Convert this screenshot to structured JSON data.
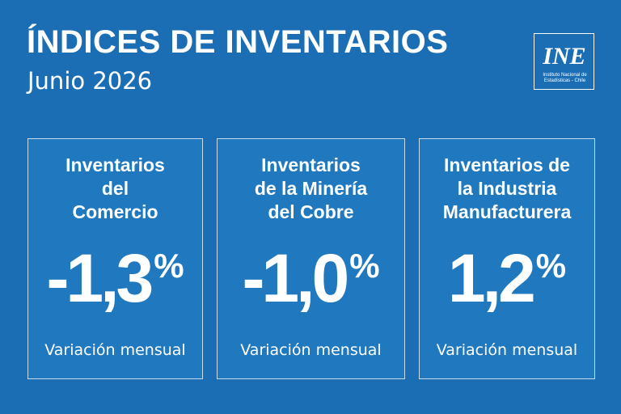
{
  "header": {
    "title": "ÍNDICES DE INVENTARIOS",
    "subtitle": "Junio 2026"
  },
  "logo": {
    "mark": "INE",
    "line1": "Instituto Nacional de",
    "line2": "Estadísticas - Chile"
  },
  "cards": [
    {
      "title_lines": [
        "Inventarios",
        "del",
        "Comercio"
      ],
      "value": "-1,3",
      "unit": "%",
      "label": "Variación mensual"
    },
    {
      "title_lines": [
        "Inventarios",
        "de la Minería",
        "del Cobre"
      ],
      "value": "-1,0",
      "unit": "%",
      "label": "Variación mensual"
    },
    {
      "title_lines": [
        "Inventarios de",
        "la Industria",
        "Manufacturera"
      ],
      "value": "1,2",
      "unit": "%",
      "label": "Variación mensual"
    }
  ],
  "colors": {
    "background": "#1c6eb4",
    "card_background": "#2079bf",
    "text": "#ffffff"
  }
}
